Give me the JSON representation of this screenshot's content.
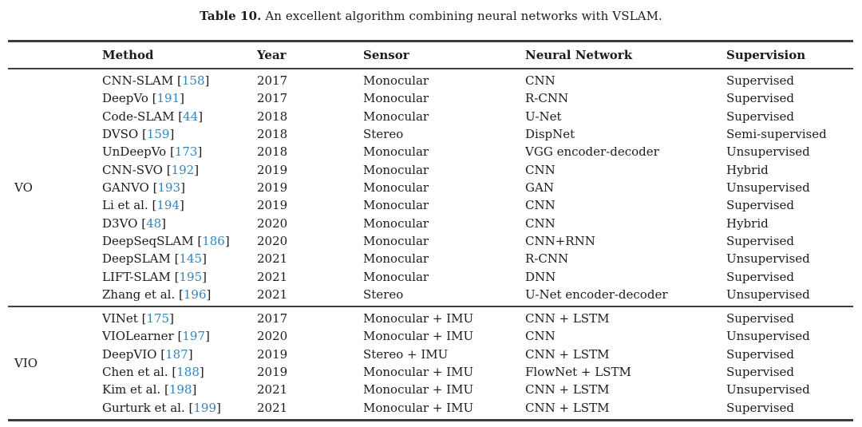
{
  "caption": {
    "label": "Table 10.",
    "text": "An excellent algorithm combining neural networks with VSLAM."
  },
  "colors": {
    "citation_blue": "#2F86C4",
    "rule_dark": "#3e3e3e",
    "text": "#1b1b1b"
  },
  "table": {
    "headers": [
      "Method",
      "Year",
      "Sensor",
      "Neural Network",
      "Supervision"
    ],
    "sections": [
      {
        "group": "VO",
        "rows": [
          {
            "method": "CNN-SLAM",
            "cite": "158",
            "year": "2017",
            "sensor": "Monocular",
            "network": "CNN",
            "supervision": "Supervised"
          },
          {
            "method": "DeepVo",
            "cite": "191",
            "year": "2017",
            "sensor": "Monocular",
            "network": "R-CNN",
            "supervision": "Supervised"
          },
          {
            "method": "Code-SLAM",
            "cite": "44",
            "year": "2018",
            "sensor": "Monocular",
            "network": "U-Net",
            "supervision": "Supervised"
          },
          {
            "method": "DVSO",
            "cite": "159",
            "year": "2018",
            "sensor": "Stereo",
            "network": "DispNet",
            "supervision": "Semi-supervised"
          },
          {
            "method": "UnDeepVo",
            "cite": "173",
            "year": "2018",
            "sensor": "Monocular",
            "network": "VGG encoder-decoder",
            "supervision": "Unsupervised"
          },
          {
            "method": "CNN-SVO",
            "cite": "192",
            "year": "2019",
            "sensor": "Monocular",
            "network": "CNN",
            "supervision": "Hybrid"
          },
          {
            "method": "GANVO",
            "cite": "193",
            "year": "2019",
            "sensor": "Monocular",
            "network": "GAN",
            "supervision": "Unsupervised"
          },
          {
            "method": "Li et al.",
            "cite": "194",
            "year": "2019",
            "sensor": "Monocular",
            "network": "CNN",
            "supervision": "Supervised"
          },
          {
            "method": "D3VO",
            "cite": "48",
            "year": "2020",
            "sensor": "Monocular",
            "network": "CNN",
            "supervision": "Hybrid"
          },
          {
            "method": "DeepSeqSLAM",
            "cite": "186",
            "year": "2020",
            "sensor": "Monocular",
            "network": "CNN+RNN",
            "supervision": "Supervised"
          },
          {
            "method": "DeepSLAM",
            "cite": "145",
            "year": "2021",
            "sensor": "Monocular",
            "network": "R-CNN",
            "supervision": "Unsupervised"
          },
          {
            "method": "LIFT-SLAM",
            "cite": "195",
            "year": "2021",
            "sensor": "Monocular",
            "network": "DNN",
            "supervision": "Supervised"
          },
          {
            "method": "Zhang et al.",
            "cite": "196",
            "year": "2021",
            "sensor": "Stereo",
            "network": "U-Net encoder-decoder",
            "supervision": "Unsupervised"
          }
        ]
      },
      {
        "group": "VIO",
        "rows": [
          {
            "method": "VINet",
            "cite": "175",
            "year": "2017",
            "sensor": "Monocular + IMU",
            "network": "CNN + LSTM",
            "supervision": "Supervised"
          },
          {
            "method": "VIOLearner",
            "cite": "197",
            "year": "2020",
            "sensor": "Monocular + IMU",
            "network": "CNN",
            "supervision": "Unsupervised"
          },
          {
            "method": "DeepVIO",
            "cite": "187",
            "year": "2019",
            "sensor": "Stereo + IMU",
            "network": "CNN + LSTM",
            "supervision": "Supervised"
          },
          {
            "method": "Chen et al.",
            "cite": "188",
            "year": "2019",
            "sensor": "Monocular + IMU",
            "network": "FlowNet + LSTM",
            "supervision": "Supervised"
          },
          {
            "method": "Kim et al.",
            "cite": "198",
            "year": "2021",
            "sensor": "Monocular + IMU",
            "network": "CNN + LSTM",
            "supervision": "Unsupervised"
          },
          {
            "method": "Gurturk et al.",
            "cite": "199",
            "year": "2021",
            "sensor": "Monocular + IMU",
            "network": "CNN + LSTM",
            "supervision": "Supervised"
          }
        ]
      }
    ]
  }
}
